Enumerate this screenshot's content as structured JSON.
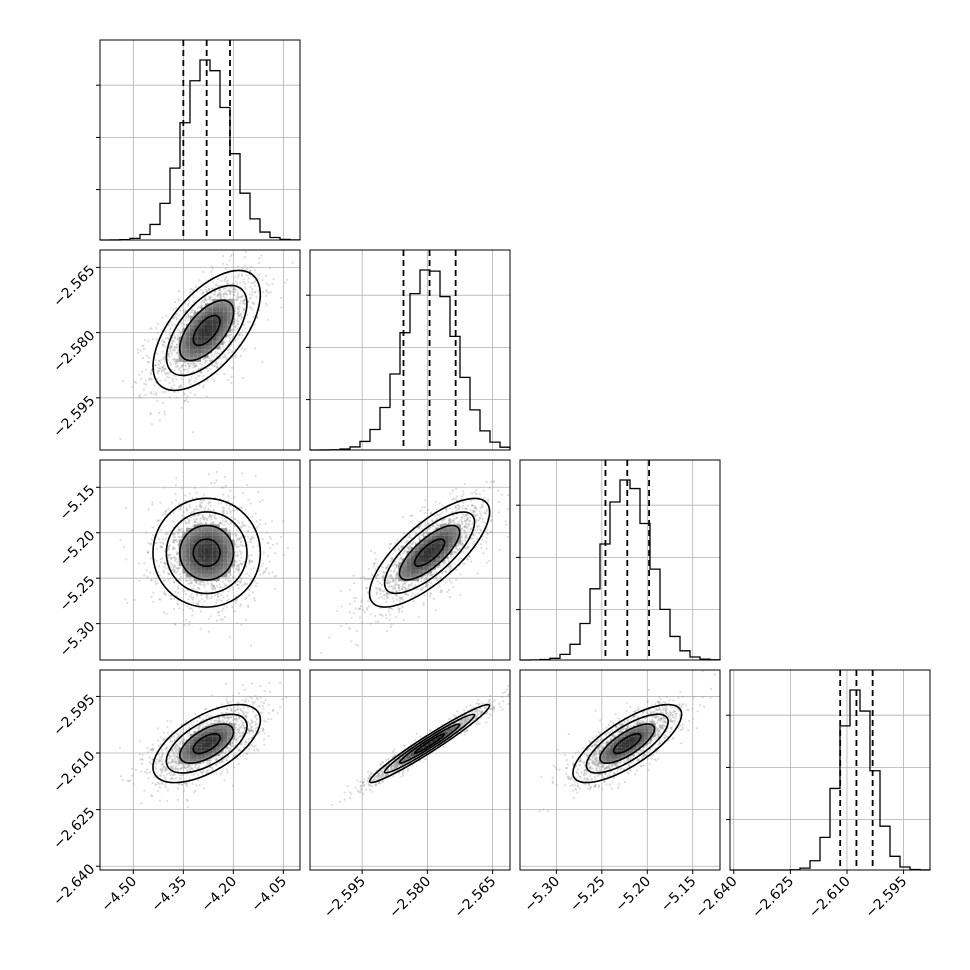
{
  "chart_data": {
    "type": "corner",
    "title": "",
    "parameters": [
      {
        "index": 0,
        "label": "",
        "range": [
          -4.6,
          -4.0
        ],
        "mean": -4.28,
        "sd": 0.07,
        "q16": -4.35,
        "q50": -4.28,
        "q84": -4.21,
        "ticks": [
          -4.5,
          -4.35,
          -4.2,
          -4.05
        ],
        "tick_labels": [
          "−4.50",
          "−4.35",
          "−4.20",
          "−4.05"
        ]
      },
      {
        "index": 1,
        "label": "",
        "range": [
          -2.607,
          -2.561
        ],
        "mean": -2.5795,
        "sd": 0.006,
        "q16": -2.5855,
        "q50": -2.5795,
        "q84": -2.5735,
        "ticks": [
          -2.595,
          -2.58,
          -2.565
        ],
        "tick_labels": [
          "−2.595",
          "−2.580",
          "−2.565"
        ]
      },
      {
        "index": 2,
        "label": "",
        "range": [
          -5.34,
          -5.12
        ],
        "mean": -5.222,
        "sd": 0.026,
        "q16": -5.246,
        "q50": -5.222,
        "q84": -5.198,
        "ticks": [
          -5.3,
          -5.25,
          -5.2,
          -5.15
        ],
        "tick_labels": [
          "−5.30",
          "−5.25",
          "−5.20",
          "−5.15"
        ]
      },
      {
        "index": 3,
        "label": "",
        "range": [
          -2.641,
          -2.588
        ],
        "mean": -2.6075,
        "sd": 0.0045,
        "q16": -2.6118,
        "q50": -2.6075,
        "q84": -2.6032,
        "ticks": [
          -2.64,
          -2.625,
          -2.61,
          -2.595
        ],
        "tick_labels": [
          "−2.640",
          "−2.625",
          "−2.610",
          "−2.595"
        ]
      }
    ],
    "correlations": [
      [
        1,
        0.6,
        0.0,
        0.6
      ],
      [
        0.6,
        1,
        0.75,
        0.97
      ],
      [
        0.0,
        0.75,
        1,
        0.75
      ],
      [
        0.6,
        0.97,
        0.75,
        1
      ]
    ],
    "histogram_bins": 20,
    "contour_levels_sigma": [
      0.5,
      1.0,
      1.5,
      2.0
    ],
    "quantile_line_style": "dashed",
    "grid": true,
    "samples_per_panel": 1500
  }
}
